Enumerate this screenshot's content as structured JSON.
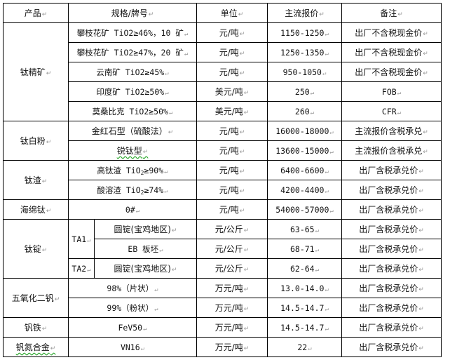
{
  "header": {
    "product": "产品",
    "spec": "规格/牌号",
    "unit": "单位",
    "price": "主流报价",
    "note": "备注"
  },
  "groups": {
    "ti_concentrate": {
      "name": "钛精矿",
      "rows": [
        {
          "spec": "攀枝花矿 TiO2≥46%，10 矿",
          "unit": "元/吨",
          "price": "1150-1250",
          "note": "出厂不含税现金价"
        },
        {
          "spec": "攀枝花矿 TiO2≥47%，20 矿",
          "unit": "元/吨",
          "price": "1250-1350",
          "note": "出厂不含税现金价"
        },
        {
          "spec": "云南矿 TiO2≥45%",
          "unit": "元/吨",
          "price": "950-1050",
          "note": "出厂不含税现金价"
        },
        {
          "spec": "印度矿 TiO2≥50%",
          "unit": "美元/吨",
          "price": "250",
          "note": "FOB"
        },
        {
          "spec": "莫桑比克 TiO2≥50%",
          "unit": "美元/吨",
          "price": "260",
          "note": "CFR"
        }
      ]
    },
    "ti_dioxide": {
      "name": "钛白粉",
      "rows": [
        {
          "spec": "金红石型（硫酸法）",
          "unit": "元/吨",
          "price": "16000-18000",
          "note": "主流报价含税承兑"
        },
        {
          "spec": "锐钛型",
          "unit": "元/吨",
          "price": "13600-15000",
          "note": "主流报价含税承兑"
        }
      ]
    },
    "ti_slag": {
      "name": "钛渣",
      "rows": [
        {
          "spec_prefix": "高钛渣 TiO",
          "spec_sub": "2",
          "spec_suffix": "≥90%",
          "unit": "元/吨",
          "price": "6400-6600",
          "note": "出厂含税承兑价"
        },
        {
          "spec_prefix": "酸溶渣 TiO",
          "spec_sub": "2",
          "spec_suffix": "≥74%",
          "unit": "元/吨",
          "price": "4200-4400",
          "note": "出厂含税承兑价"
        }
      ]
    },
    "sponge_ti": {
      "name": "海绵钛",
      "rows": [
        {
          "spec": "0#",
          "unit": "元/吨",
          "price": "54000-57000",
          "note": "出厂含税承兑价"
        }
      ]
    },
    "ti_ingot": {
      "name": "钛锭",
      "grade_a": "TA1",
      "grade_b": "TA2",
      "rows": [
        {
          "spec": "圆锭(宝鸡地区)",
          "unit": "元/公斤",
          "price": "63-65",
          "note": "出厂含税承兑价"
        },
        {
          "spec": "EB 板坯",
          "unit": "元/公斤",
          "price": "68-71",
          "note": "出厂含税承兑价"
        },
        {
          "spec": "圆锭(宝鸡地区)",
          "unit": "元/公斤",
          "price": "62-64",
          "note": "出厂含税承兑价"
        }
      ]
    },
    "v2o5": {
      "name": "五氧化二钒",
      "rows": [
        {
          "spec": "98%（片状）",
          "unit": "万元/吨",
          "price": "13.0-14.0",
          "note": "出厂含税承兑价"
        },
        {
          "spec": "99%（粉状）",
          "unit": "万元/吨",
          "price": "14.5-14.7",
          "note": "出厂含税承兑价"
        }
      ]
    },
    "fev": {
      "name": "钒铁",
      "rows": [
        {
          "spec": "FeV50",
          "unit": "万元/吨",
          "price": "14.5-14.7",
          "note": "出厂含税承兑价"
        }
      ]
    },
    "vn": {
      "name": "钒氮合金",
      "rows": [
        {
          "spec": "VN16",
          "unit": "万元/吨",
          "price": "22",
          "note": "出厂含税承兑价"
        }
      ]
    }
  }
}
